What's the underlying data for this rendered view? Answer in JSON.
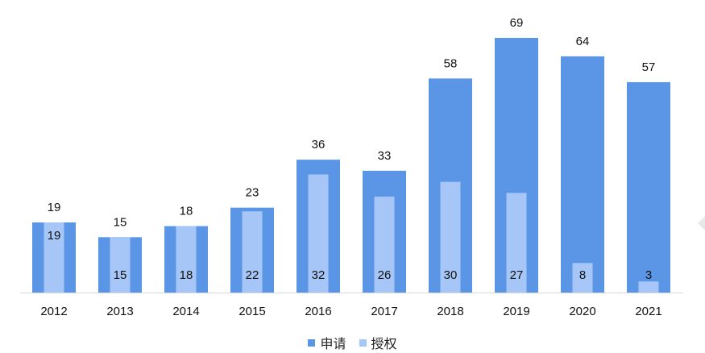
{
  "chart_data": {
    "type": "bar",
    "categories": [
      "2012",
      "2013",
      "2014",
      "2015",
      "2016",
      "2017",
      "2018",
      "2019",
      "2020",
      "2021"
    ],
    "series": [
      {
        "name": "申请",
        "values": [
          19,
          15,
          18,
          23,
          36,
          33,
          58,
          69,
          64,
          57
        ],
        "color": "#5b96e6"
      },
      {
        "name": "授权",
        "values": [
          19,
          15,
          18,
          22,
          32,
          26,
          30,
          27,
          8,
          3
        ],
        "color": "#a6c6f7"
      }
    ],
    "title": "",
    "xlabel": "",
    "ylabel": "",
    "ylim": [
      0,
      69
    ],
    "grid": false,
    "legend_position": "bottom",
    "axis_color": "#d9d9d9"
  }
}
